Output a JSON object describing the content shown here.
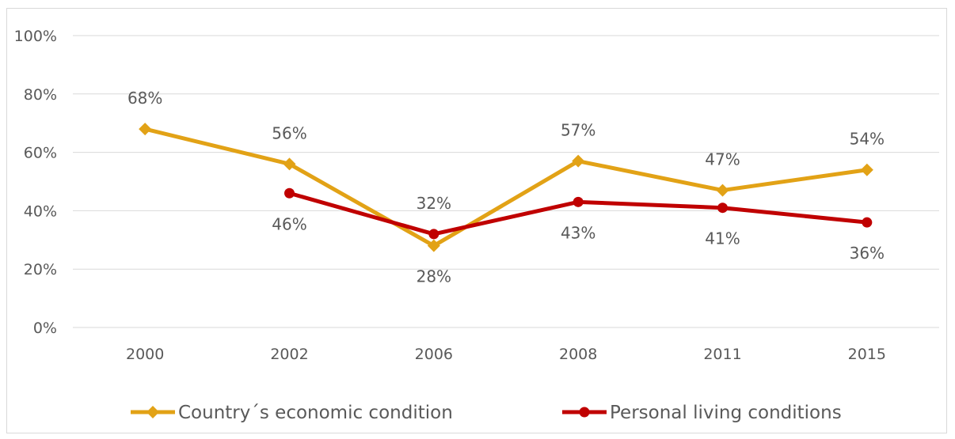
{
  "chart_data": {
    "type": "line",
    "categories": [
      "2000",
      "2002",
      "2006",
      "2008",
      "2011",
      "2015"
    ],
    "ylim": [
      0,
      100
    ],
    "y_ticks": [
      "0%",
      "20%",
      "40%",
      "60%",
      "80%",
      "100%"
    ],
    "grid": "horizontal",
    "legend_position": "bottom",
    "series": [
      {
        "name": "Country´s economic condition",
        "color": "#E2A216",
        "marker": "diamond",
        "values": [
          68,
          56,
          28,
          57,
          47,
          54
        ],
        "labels": [
          "68%",
          "56%",
          "28%",
          "57%",
          "47%",
          "54%"
        ]
      },
      {
        "name": "Personal living conditions",
        "color": "#C00000",
        "marker": "circle",
        "values": [
          null,
          46,
          32,
          43,
          41,
          36
        ],
        "labels": [
          "",
          "46%",
          "32%",
          "43%",
          "41%",
          "36%"
        ]
      }
    ]
  }
}
